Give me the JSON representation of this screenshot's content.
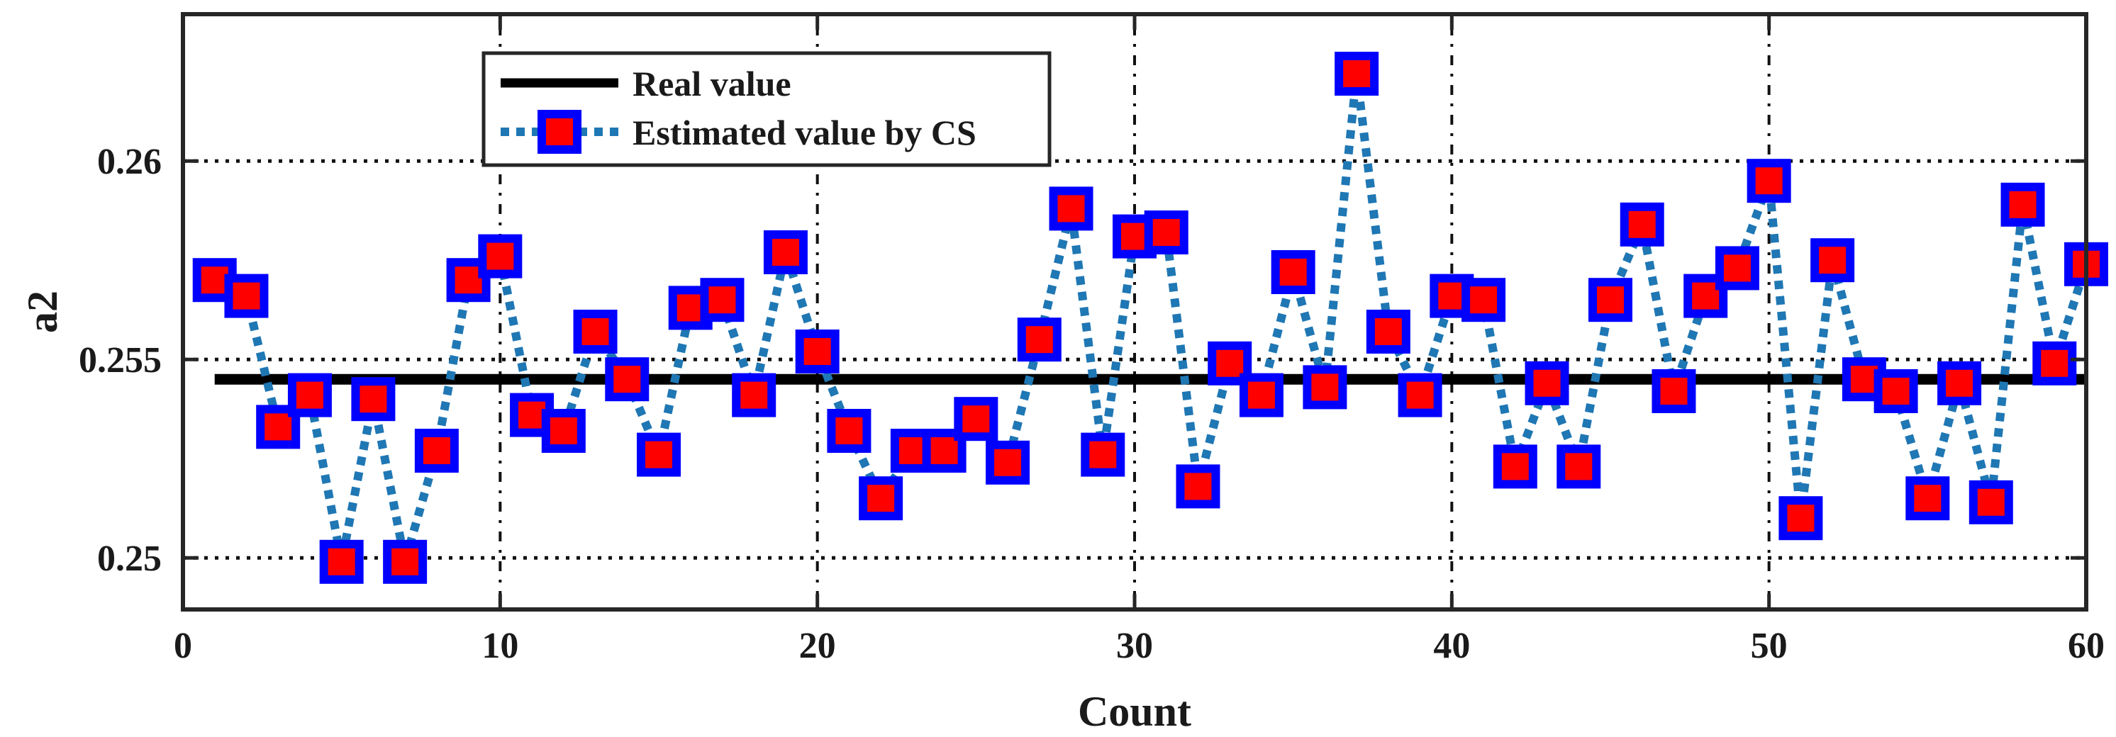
{
  "chart_data": {
    "type": "line",
    "title": "",
    "xlabel": "Count",
    "ylabel": "a2",
    "xlim": [
      0,
      60
    ],
    "ylim": [
      0.2487,
      0.2637
    ],
    "grid": true,
    "legend_position": "top-left",
    "xticks": [
      0,
      10,
      20,
      30,
      40,
      50,
      60
    ],
    "xtick_labels": [
      "0",
      "10",
      "20",
      "30",
      "40",
      "50",
      "60"
    ],
    "yticks": [
      0.25,
      0.255,
      0.26
    ],
    "ytick_labels": [
      "0.25",
      "0.255",
      "0.26"
    ],
    "series": [
      {
        "name": "Real value",
        "style": "solid",
        "color": "#000000",
        "x": [
          1,
          60
        ],
        "values": [
          0.2545,
          0.2545
        ]
      },
      {
        "name": "Estimated value by CS",
        "style": "dotted",
        "color": "#1f77b4",
        "marker": "square",
        "marker_face_color": "#ff0000",
        "marker_edge_color": "#0000ff",
        "x": [
          1,
          2,
          3,
          4,
          5,
          6,
          7,
          8,
          9,
          10,
          11,
          12,
          13,
          14,
          15,
          16,
          17,
          18,
          19,
          20,
          21,
          22,
          23,
          24,
          25,
          26,
          27,
          28,
          29,
          30,
          31,
          32,
          33,
          34,
          35,
          36,
          37,
          38,
          39,
          40,
          41,
          42,
          43,
          44,
          45,
          46,
          47,
          48,
          49,
          50,
          51,
          52,
          53,
          54,
          55,
          56,
          57,
          58,
          59,
          60
        ],
        "values": [
          0.257,
          0.2566,
          0.2533,
          0.2541,
          0.2499,
          0.254,
          0.2499,
          0.2527,
          0.257,
          0.2576,
          0.2536,
          0.2532,
          0.2557,
          0.2545,
          0.2526,
          0.2563,
          0.2565,
          0.2541,
          0.2577,
          0.2552,
          0.2532,
          0.2515,
          0.2527,
          0.2527,
          0.2535,
          0.2524,
          0.2555,
          0.2588,
          0.2526,
          0.2581,
          0.2582,
          0.2518,
          0.2549,
          0.2541,
          0.2572,
          0.2543,
          0.2622,
          0.2557,
          0.2541,
          0.2566,
          0.2565,
          0.2523,
          0.2544,
          0.2523,
          0.2565,
          0.2584,
          0.2542,
          0.2566,
          0.2573,
          0.2595,
          0.251,
          0.2575,
          0.2545,
          0.2542,
          0.2515,
          0.2544,
          0.2514,
          0.2589,
          0.2549,
          0.2574
        ]
      }
    ]
  }
}
